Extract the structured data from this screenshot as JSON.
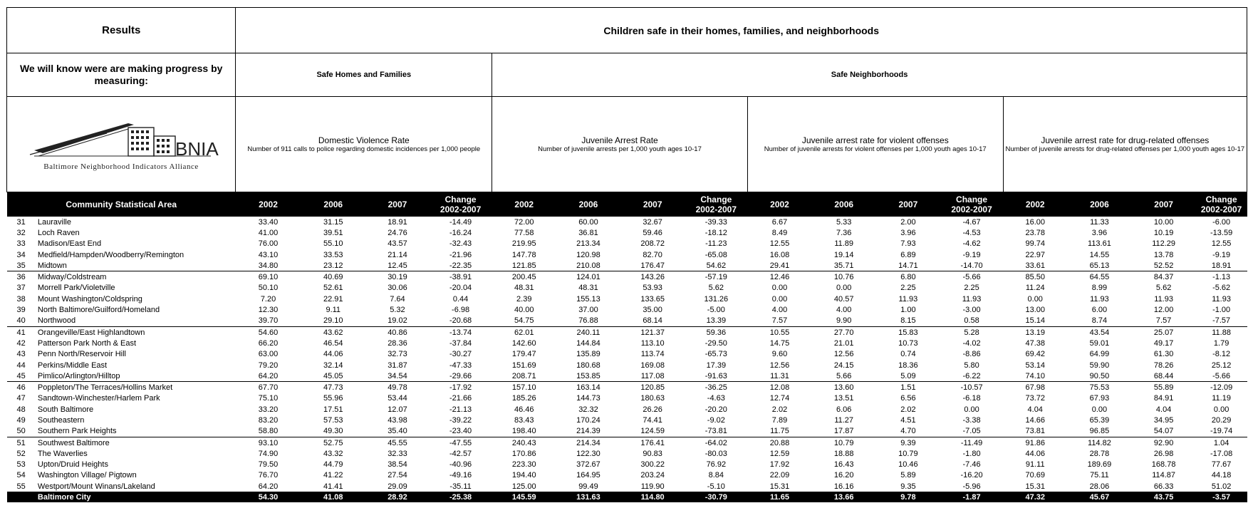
{
  "header": {
    "results": "Results",
    "children_safe": "Children safe in their homes, families, and neighborhoods",
    "measuring": "We will know were are making progress by measuring:",
    "safe_homes": "Safe Homes and Families",
    "safe_neighborhoods": "Safe Neighborhoods",
    "logo": {
      "text": "BNIA",
      "subtitle": "Baltimore Neighborhood Indicators Alliance"
    }
  },
  "indicators": [
    {
      "title": "Domestic Violence Rate",
      "desc": "Number of 911 calls to police regarding domestic incidences per 1,000 people"
    },
    {
      "title": "Juvenile Arrest Rate",
      "desc": "Number of juvenile arrests per 1,000 youth ages 10-17"
    },
    {
      "title": "Juvenile arrest rate for violent offenses",
      "desc": "Number of juvenile arrests for violent offenses per 1,000 youth ages 10-17"
    },
    {
      "title": "Juvenile arrest rate for drug-related offenses",
      "desc": "Number of juvenile arrests for drug-related offenses per 1,000 youth ages 10-17"
    }
  ],
  "columns": {
    "csa": "Community Statistical Area",
    "y2002": "2002",
    "y2006": "2006",
    "y2007": "2007",
    "change_line1": "Change",
    "change_line2": "2002-2007"
  },
  "rows": [
    {
      "id": "31",
      "name": "Lauraville",
      "v": [
        "33.40",
        "31.15",
        "18.91",
        "-14.49",
        "72.00",
        "60.00",
        "32.67",
        "-39.33",
        "6.67",
        "5.33",
        "2.00",
        "-4.67",
        "16.00",
        "11.33",
        "10.00",
        "-6.00"
      ]
    },
    {
      "id": "32",
      "name": "Loch Raven",
      "v": [
        "41.00",
        "39.51",
        "24.76",
        "-16.24",
        "77.58",
        "36.81",
        "59.46",
        "-18.12",
        "8.49",
        "7.36",
        "3.96",
        "-4.53",
        "23.78",
        "3.96",
        "10.19",
        "-13.59"
      ]
    },
    {
      "id": "33",
      "name": "Madison/East End",
      "v": [
        "76.00",
        "55.10",
        "43.57",
        "-32.43",
        "219.95",
        "213.34",
        "208.72",
        "-11.23",
        "12.55",
        "11.89",
        "7.93",
        "-4.62",
        "99.74",
        "113.61",
        "112.29",
        "12.55"
      ]
    },
    {
      "id": "34",
      "name": "Medfield/Hampden/Woodberry/Remington",
      "v": [
        "43.10",
        "33.53",
        "21.14",
        "-21.96",
        "147.78",
        "120.98",
        "82.70",
        "-65.08",
        "16.08",
        "19.14",
        "6.89",
        "-9.19",
        "22.97",
        "14.55",
        "13.78",
        "-9.19"
      ]
    },
    {
      "id": "35",
      "name": "Midtown",
      "v": [
        "34.80",
        "23.12",
        "12.45",
        "-22.35",
        "121.85",
        "210.08",
        "176.47",
        "54.62",
        "29.41",
        "35.71",
        "14.71",
        "-14.70",
        "33.61",
        "65.13",
        "52.52",
        "18.91"
      ]
    },
    {
      "id": "36",
      "name": "Midway/Coldstream",
      "v": [
        "69.10",
        "40.69",
        "30.19",
        "-38.91",
        "200.45",
        "124.01",
        "143.26",
        "-57.19",
        "12.46",
        "10.76",
        "6.80",
        "-5.66",
        "85.50",
        "64.55",
        "84.37",
        "-1.13"
      ]
    },
    {
      "id": "37",
      "name": "Morrell Park/Violetville",
      "v": [
        "50.10",
        "52.61",
        "30.06",
        "-20.04",
        "48.31",
        "48.31",
        "53.93",
        "5.62",
        "0.00",
        "0.00",
        "2.25",
        "2.25",
        "11.24",
        "8.99",
        "5.62",
        "-5.62"
      ]
    },
    {
      "id": "38",
      "name": "Mount Washington/Coldspring",
      "v": [
        "7.20",
        "22.91",
        "7.64",
        "0.44",
        "2.39",
        "155.13",
        "133.65",
        "131.26",
        "0.00",
        "40.57",
        "11.93",
        "11.93",
        "0.00",
        "11.93",
        "11.93",
        "11.93"
      ]
    },
    {
      "id": "39",
      "name": "North Baltimore/Guilford/Homeland",
      "v": [
        "12.30",
        "9.11",
        "5.32",
        "-6.98",
        "40.00",
        "37.00",
        "35.00",
        "-5.00",
        "4.00",
        "4.00",
        "1.00",
        "-3.00",
        "13.00",
        "6.00",
        "12.00",
        "-1.00"
      ]
    },
    {
      "id": "40",
      "name": "Northwood",
      "v": [
        "39.70",
        "29.10",
        "19.02",
        "-20.68",
        "54.75",
        "76.88",
        "68.14",
        "13.39",
        "7.57",
        "9.90",
        "8.15",
        "0.58",
        "15.14",
        "8.74",
        "7.57",
        "-7.57"
      ]
    },
    {
      "id": "41",
      "name": "Orangeville/East Highlandtown",
      "v": [
        "54.60",
        "43.62",
        "40.86",
        "-13.74",
        "62.01",
        "240.11",
        "121.37",
        "59.36",
        "10.55",
        "27.70",
        "15.83",
        "5.28",
        "13.19",
        "43.54",
        "25.07",
        "11.88"
      ]
    },
    {
      "id": "42",
      "name": "Patterson Park North & East",
      "v": [
        "66.20",
        "46.54",
        "28.36",
        "-37.84",
        "142.60",
        "144.84",
        "113.10",
        "-29.50",
        "14.75",
        "21.01",
        "10.73",
        "-4.02",
        "47.38",
        "59.01",
        "49.17",
        "1.79"
      ]
    },
    {
      "id": "43",
      "name": "Penn North/Reservoir Hill",
      "v": [
        "63.00",
        "44.06",
        "32.73",
        "-30.27",
        "179.47",
        "135.89",
        "113.74",
        "-65.73",
        "9.60",
        "12.56",
        "0.74",
        "-8.86",
        "69.42",
        "64.99",
        "61.30",
        "-8.12"
      ]
    },
    {
      "id": "44",
      "name": "Perkins/Middle East",
      "v": [
        "79.20",
        "32.14",
        "31.87",
        "-47.33",
        "151.69",
        "180.68",
        "169.08",
        "17.39",
        "12.56",
        "24.15",
        "18.36",
        "5.80",
        "53.14",
        "59.90",
        "78.26",
        "25.12"
      ]
    },
    {
      "id": "45",
      "name": "Pimlico/Arlington/Hilltop",
      "v": [
        "64.20",
        "45.05",
        "34.54",
        "-29.66",
        "208.71",
        "153.85",
        "117.08",
        "-91.63",
        "11.31",
        "5.66",
        "5.09",
        "-6.22",
        "74.10",
        "90.50",
        "68.44",
        "-5.66"
      ]
    },
    {
      "id": "46",
      "name": "Poppleton/The Terraces/Hollins Market",
      "v": [
        "67.70",
        "47.73",
        "49.78",
        "-17.92",
        "157.10",
        "163.14",
        "120.85",
        "-36.25",
        "12.08",
        "13.60",
        "1.51",
        "-10.57",
        "67.98",
        "75.53",
        "55.89",
        "-12.09"
      ]
    },
    {
      "id": "47",
      "name": "Sandtown-Winchester/Harlem Park",
      "v": [
        "75.10",
        "55.96",
        "53.44",
        "-21.66",
        "185.26",
        "144.73",
        "180.63",
        "-4.63",
        "12.74",
        "13.51",
        "6.56",
        "-6.18",
        "73.72",
        "67.93",
        "84.91",
        "11.19"
      ]
    },
    {
      "id": "48",
      "name": "South Baltimore",
      "v": [
        "33.20",
        "17.51",
        "12.07",
        "-21.13",
        "46.46",
        "32.32",
        "26.26",
        "-20.20",
        "2.02",
        "6.06",
        "2.02",
        "0.00",
        "4.04",
        "0.00",
        "4.04",
        "0.00"
      ]
    },
    {
      "id": "49",
      "name": "Southeastern",
      "v": [
        "83.20",
        "57.53",
        "43.98",
        "-39.22",
        "83.43",
        "170.24",
        "74.41",
        "-9.02",
        "7.89",
        "11.27",
        "4.51",
        "-3.38",
        "14.66",
        "65.39",
        "34.95",
        "20.29"
      ]
    },
    {
      "id": "50",
      "name": "Southern Park Heights",
      "v": [
        "58.80",
        "49.30",
        "35.40",
        "-23.40",
        "198.40",
        "214.39",
        "124.59",
        "-73.81",
        "11.75",
        "17.87",
        "4.70",
        "-7.05",
        "73.81",
        "96.85",
        "54.07",
        "-19.74"
      ]
    },
    {
      "id": "51",
      "name": "Southwest Baltimore",
      "v": [
        "93.10",
        "52.75",
        "45.55",
        "-47.55",
        "240.43",
        "214.34",
        "176.41",
        "-64.02",
        "20.88",
        "10.79",
        "9.39",
        "-11.49",
        "91.86",
        "114.82",
        "92.90",
        "1.04"
      ]
    },
    {
      "id": "52",
      "name": "The Waverlies",
      "v": [
        "74.90",
        "43.32",
        "32.33",
        "-42.57",
        "170.86",
        "122.30",
        "90.83",
        "-80.03",
        "12.59",
        "18.88",
        "10.79",
        "-1.80",
        "44.06",
        "28.78",
        "26.98",
        "-17.08"
      ]
    },
    {
      "id": "53",
      "name": "Upton/Druid Heights",
      "v": [
        "79.50",
        "44.79",
        "38.54",
        "-40.96",
        "223.30",
        "372.67",
        "300.22",
        "76.92",
        "17.92",
        "16.43",
        "10.46",
        "-7.46",
        "91.11",
        "189.69",
        "168.78",
        "77.67"
      ]
    },
    {
      "id": "54",
      "name": "Washington Village/ Pigtown",
      "v": [
        "76.70",
        "41.22",
        "27.54",
        "-49.16",
        "194.40",
        "164.95",
        "203.24",
        "8.84",
        "22.09",
        "16.20",
        "5.89",
        "-16.20",
        "70.69",
        "75.11",
        "114.87",
        "44.18"
      ]
    },
    {
      "id": "55",
      "name": "Westport/Mount Winans/Lakeland",
      "v": [
        "64.20",
        "41.41",
        "29.09",
        "-35.11",
        "125.00",
        "99.49",
        "119.90",
        "-5.10",
        "15.31",
        "16.16",
        "9.35",
        "-5.96",
        "15.31",
        "28.06",
        "66.33",
        "51.02"
      ]
    }
  ],
  "city": {
    "name": "Baltimore City",
    "v": [
      "54.30",
      "41.08",
      "28.92",
      "-25.38",
      "145.59",
      "131.63",
      "114.80",
      "-30.79",
      "11.65",
      "13.66",
      "9.78",
      "-1.87",
      "47.32",
      "45.67",
      "43.75",
      "-3.57"
    ]
  }
}
